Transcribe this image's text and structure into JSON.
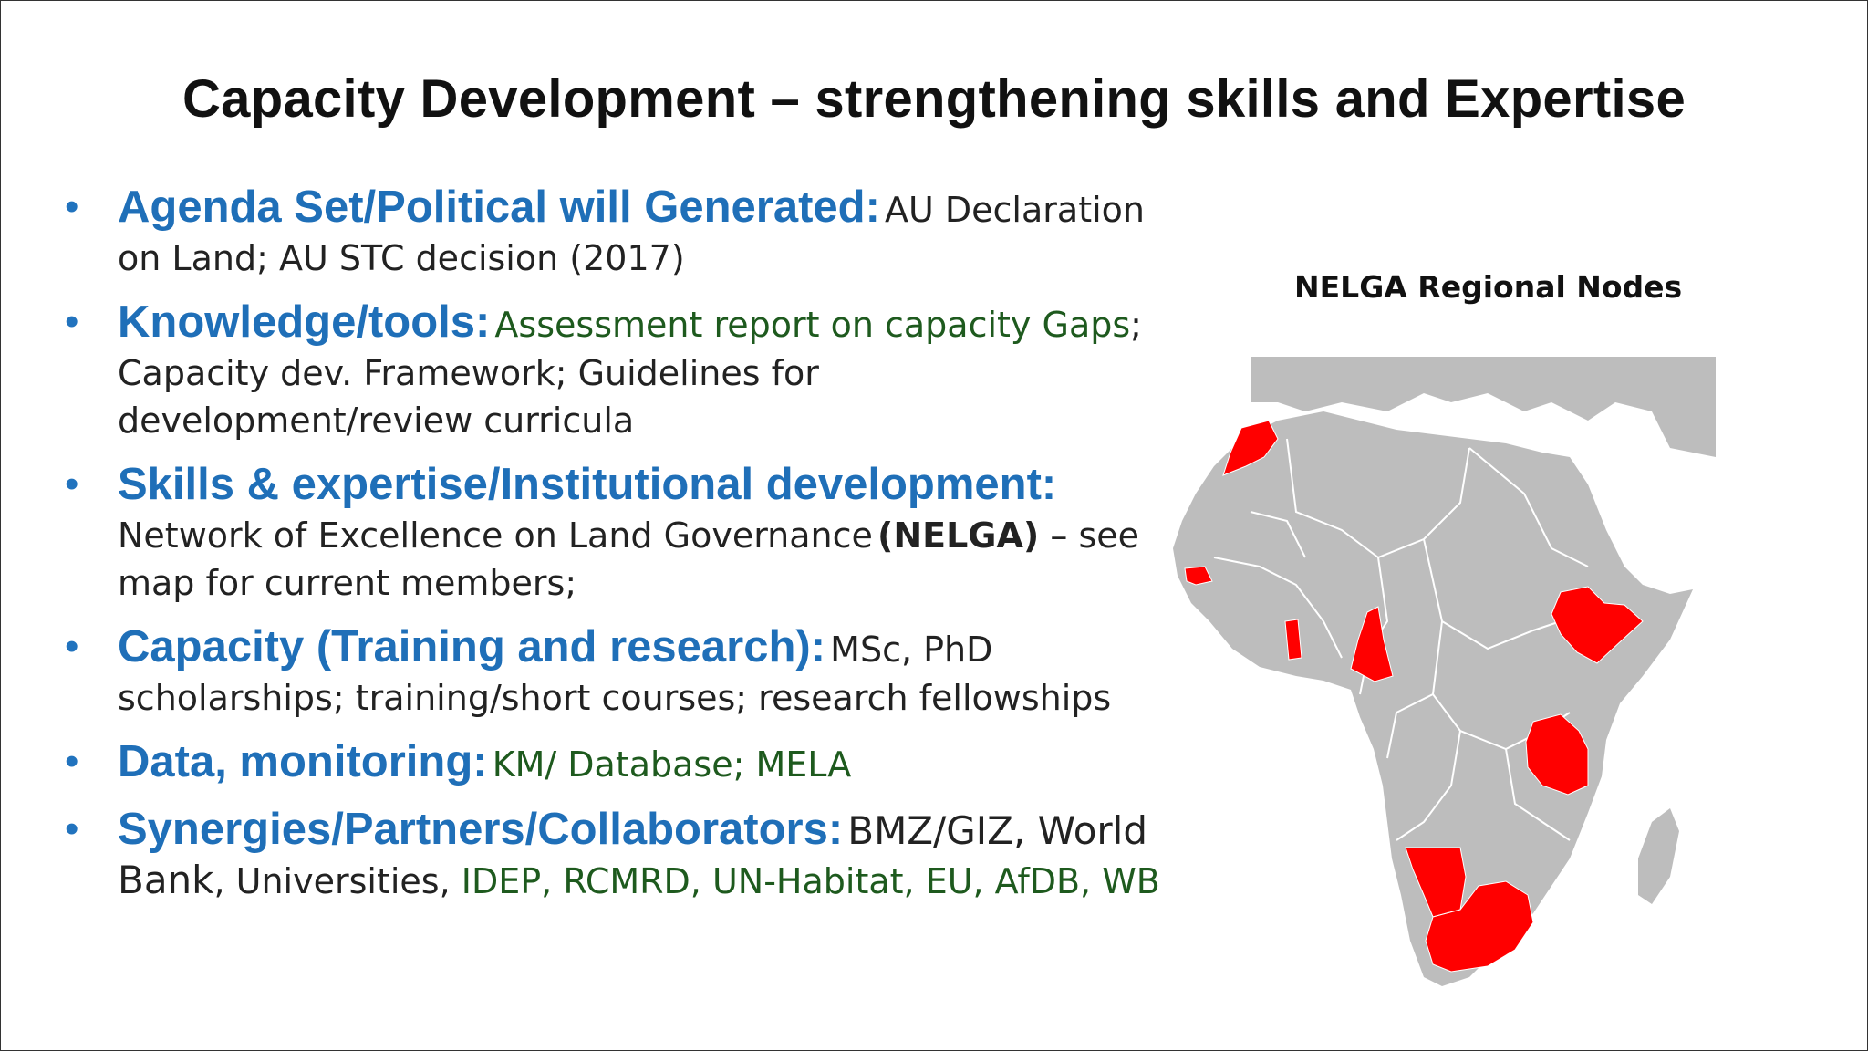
{
  "title": "Capacity Development – strengthening skills and Expertise",
  "bullets": [
    {
      "lead": "Agenda Set/Political will Generated:",
      "text": "AU Declaration on Land; AU STC decision (2017)"
    },
    {
      "lead": "Knowledge/tools:",
      "text_green": "Assessment report on capacity Gaps",
      "text": "; Capacity dev. Framework; Guidelines for development/review curricula"
    },
    {
      "lead": "Skills & expertise/Institutional development:",
      "text": "Network of Excellence on Land Governance",
      "text_bold": "(NELGA)",
      "text_after": " – see map for current members;"
    },
    {
      "lead": "Capacity (Training and research):",
      "text": "MSc, PhD scholarships; training/short courses; research fellowships"
    },
    {
      "lead": "Data, monitoring:",
      "text_green": "KM/ Database; MELA"
    },
    {
      "lead": "Synergies/Partners/Collaborators:",
      "text": "BMZ/GIZ, World Bank",
      "text_small": ", Universities, ",
      "text_green": "IDEP, RCMRD, UN-Habitat, EU, AfDB, WB"
    }
  ],
  "map": {
    "title": "NELGA Regional Nodes",
    "land_color": "#bdbdbd",
    "node_color": "#ff0000",
    "border_color": "#ffffff"
  }
}
